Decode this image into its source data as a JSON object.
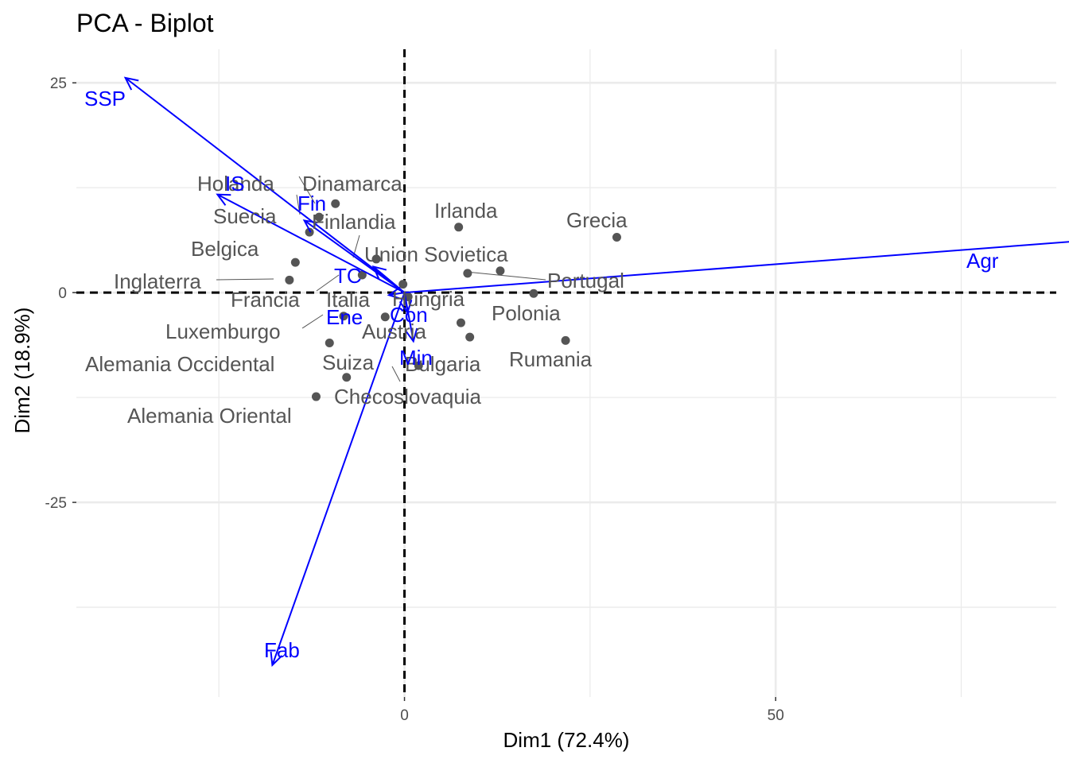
{
  "chart_data": {
    "type": "scatter",
    "title": "PCA - Biplot",
    "xlabel": "Dim1 (72.4%)",
    "ylabel": "Dim2 (18.9%)",
    "xlim": [
      -44.2,
      87.8
    ],
    "ylim": [
      -48.2,
      29.0
    ],
    "x_ticks": [
      0,
      50
    ],
    "y_ticks": [
      -25,
      0,
      25
    ],
    "x_minor": [
      -25,
      25,
      75
    ],
    "y_minor": [
      -37.5,
      -12.5,
      12.5
    ],
    "grid": true,
    "point_color": "#555555",
    "arrow_color": "#0000ff",
    "points": [
      {
        "name": "Dinamarca",
        "x": -9.3,
        "y": 10.6
      },
      {
        "name": "Holanda",
        "x": -11.5,
        "y": 9.0
      },
      {
        "name": "Suecia",
        "x": -12.8,
        "y": 7.2
      },
      {
        "name": "Finlandia",
        "x": -3.8,
        "y": 4.0
      },
      {
        "name": "Irlanda",
        "x": 7.3,
        "y": 7.8
      },
      {
        "name": "Grecia",
        "x": 28.6,
        "y": 6.6
      },
      {
        "name": "Belgica",
        "x": -14.7,
        "y": 3.6
      },
      {
        "name": "Union Sovietica",
        "x": 8.5,
        "y": 2.3
      },
      {
        "name": "Portugal",
        "x": 12.9,
        "y": 2.6
      },
      {
        "name": "Inglaterra",
        "x": -15.5,
        "y": 1.5
      },
      {
        "name": "Francia",
        "x": -5.7,
        "y": 2.1
      },
      {
        "name": "Italia",
        "x": -0.2,
        "y": 1.0
      },
      {
        "name": "Hungria",
        "x": 0.5,
        "y": -0.5
      },
      {
        "name": "Polonia",
        "x": 17.4,
        "y": -0.1
      },
      {
        "name": "Luxemburgo",
        "x": -8.2,
        "y": -2.8
      },
      {
        "name": "Alemania Occidental",
        "x": -10.1,
        "y": -6.0
      },
      {
        "name": "Austria",
        "x": 7.6,
        "y": -3.6
      },
      {
        "name": "Bulgaria",
        "x": 8.8,
        "y": -5.3
      },
      {
        "name": "Rumania",
        "x": 21.7,
        "y": -5.7
      },
      {
        "name": "Suiza",
        "x": -7.8,
        "y": -10.1
      },
      {
        "name": "Checoslovaquia",
        "x": 1.9,
        "y": -8.7
      },
      {
        "name": "Alemania Oriental",
        "x": -11.9,
        "y": -12.4
      },
      {
        "name": "",
        "x": -2.6,
        "y": -2.9
      }
    ],
    "variables": [
      {
        "name": "SSP",
        "x": -37.6,
        "y": 25.6
      },
      {
        "name": "IS",
        "x": -25.2,
        "y": 11.7
      },
      {
        "name": "Fin",
        "x": -13.5,
        "y": 8.6
      },
      {
        "name": "TC",
        "x": -4.2,
        "y": 3.1
      },
      {
        "name": "Agr",
        "x": 93.2,
        "y": 6.3
      },
      {
        "name": "Ene",
        "x": -2.1,
        "y": -0.3
      },
      {
        "name": "Con",
        "x": 1.2,
        "y": -5.8
      },
      {
        "name": "Min",
        "x": 0.4,
        "y": -2.4
      },
      {
        "name": "Fab",
        "x": -17.8,
        "y": -44.4
      }
    ]
  }
}
